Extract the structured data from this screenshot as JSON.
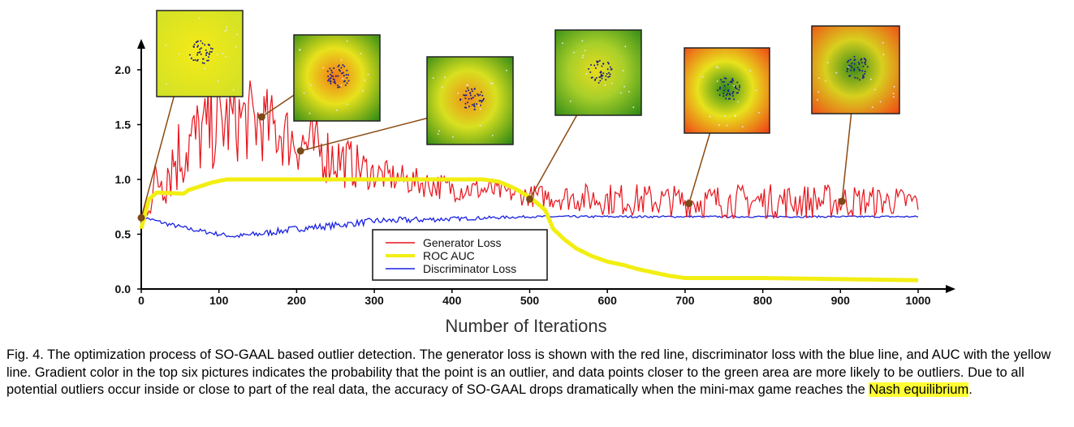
{
  "chart_data": {
    "type": "line",
    "xlabel": "Number of Iterations",
    "ylabel": "",
    "xlim": [
      0,
      1000
    ],
    "ylim": [
      0,
      2.5
    ],
    "x_ticks": [
      0,
      100,
      200,
      300,
      400,
      500,
      600,
      700,
      800,
      900,
      1000
    ],
    "y_ticks": [
      "0.0",
      "0.5",
      "1.0",
      "1.5",
      "2.0"
    ],
    "legend_position": "bottom-center",
    "series": [
      {
        "name": "Generator Loss",
        "color": "#e8141c",
        "x": [
          0,
          25,
          50,
          75,
          100,
          130,
          160,
          200,
          250,
          300,
          350,
          400,
          450,
          500,
          600,
          700,
          800,
          900,
          1000
        ],
        "y": [
          0.65,
          1.05,
          1.25,
          1.4,
          1.5,
          1.55,
          1.5,
          1.35,
          1.2,
          1.05,
          0.98,
          0.92,
          0.9,
          0.85,
          0.82,
          0.8,
          0.8,
          0.8,
          0.8
        ],
        "noise": [
          0.05,
          0.35,
          0.4,
          0.4,
          0.4,
          0.4,
          0.35,
          0.3,
          0.28,
          0.15,
          0.13,
          0.12,
          0.1,
          0.1,
          0.15,
          0.15,
          0.16,
          0.16,
          0.12
        ]
      },
      {
        "name": "ROC AUC",
        "color": "#f2ee12",
        "x": [
          0,
          10,
          20,
          55,
          60,
          90,
          110,
          440,
          460,
          480,
          500,
          510,
          520,
          530,
          545,
          560,
          580,
          600,
          620,
          640,
          660,
          680,
          700,
          800,
          900,
          1000
        ],
        "y": [
          0.55,
          0.82,
          0.88,
          0.87,
          0.9,
          0.97,
          1.0,
          1.0,
          0.98,
          0.92,
          0.84,
          0.78,
          0.72,
          0.55,
          0.45,
          0.37,
          0.3,
          0.25,
          0.22,
          0.18,
          0.15,
          0.12,
          0.1,
          0.1,
          0.09,
          0.08
        ]
      },
      {
        "name": "Discriminator Loss",
        "color": "#1a22e0",
        "x": [
          0,
          30,
          60,
          100,
          120,
          150,
          200,
          250,
          300,
          350,
          400,
          450,
          500,
          600,
          700,
          800,
          900,
          1000
        ],
        "y": [
          0.66,
          0.6,
          0.55,
          0.5,
          0.48,
          0.5,
          0.55,
          0.58,
          0.62,
          0.63,
          0.64,
          0.65,
          0.66,
          0.66,
          0.66,
          0.66,
          0.66,
          0.66
        ],
        "noise": [
          0.01,
          0.02,
          0.02,
          0.02,
          0.02,
          0.03,
          0.03,
          0.03,
          0.03,
          0.03,
          0.02,
          0.015,
          0.01,
          0.01,
          0.008,
          0.008,
          0.008,
          0.008
        ]
      }
    ],
    "snapshots": [
      {
        "iteration": 0,
        "loss": 0.65,
        "palette": [
          "#f5ea1a",
          "#e4e61e",
          "#cfe02a"
        ]
      },
      {
        "iteration": 155,
        "loss": 1.57,
        "palette": [
          "#f07a18",
          "#e8e21c",
          "#2f8a16"
        ]
      },
      {
        "iteration": 205,
        "loss": 1.26,
        "palette": [
          "#f09018",
          "#d8e020",
          "#2c8614"
        ]
      },
      {
        "iteration": 500,
        "loss": 0.82,
        "palette": [
          "#eadc1e",
          "#a8cf2a",
          "#2f8a16"
        ]
      },
      {
        "iteration": 705,
        "loss": 0.78,
        "palette": [
          "#2f8a16",
          "#e8e21c",
          "#ee4016"
        ]
      },
      {
        "iteration": 902,
        "loss": 0.8,
        "palette": [
          "#3a8a18",
          "#d8d01e",
          "#f04a16"
        ]
      }
    ]
  },
  "caption": {
    "main": "Fig. 4. The optimization process of SO-GAAL based outlier detection. The generator loss is shown with the red line, discriminator loss with the blue line, and AUC with the yellow line. Gradient color in the top six pictures indicates the probability that the point is an outlier, and data points closer to the green area are more likely to be outliers. Due to all potential outliers occur inside or close to part of the real data, the accuracy of SO-GAAL drops dramatically when the mini-max game reaches the ",
    "highlight": "Nash equilibrium",
    "end": "."
  }
}
